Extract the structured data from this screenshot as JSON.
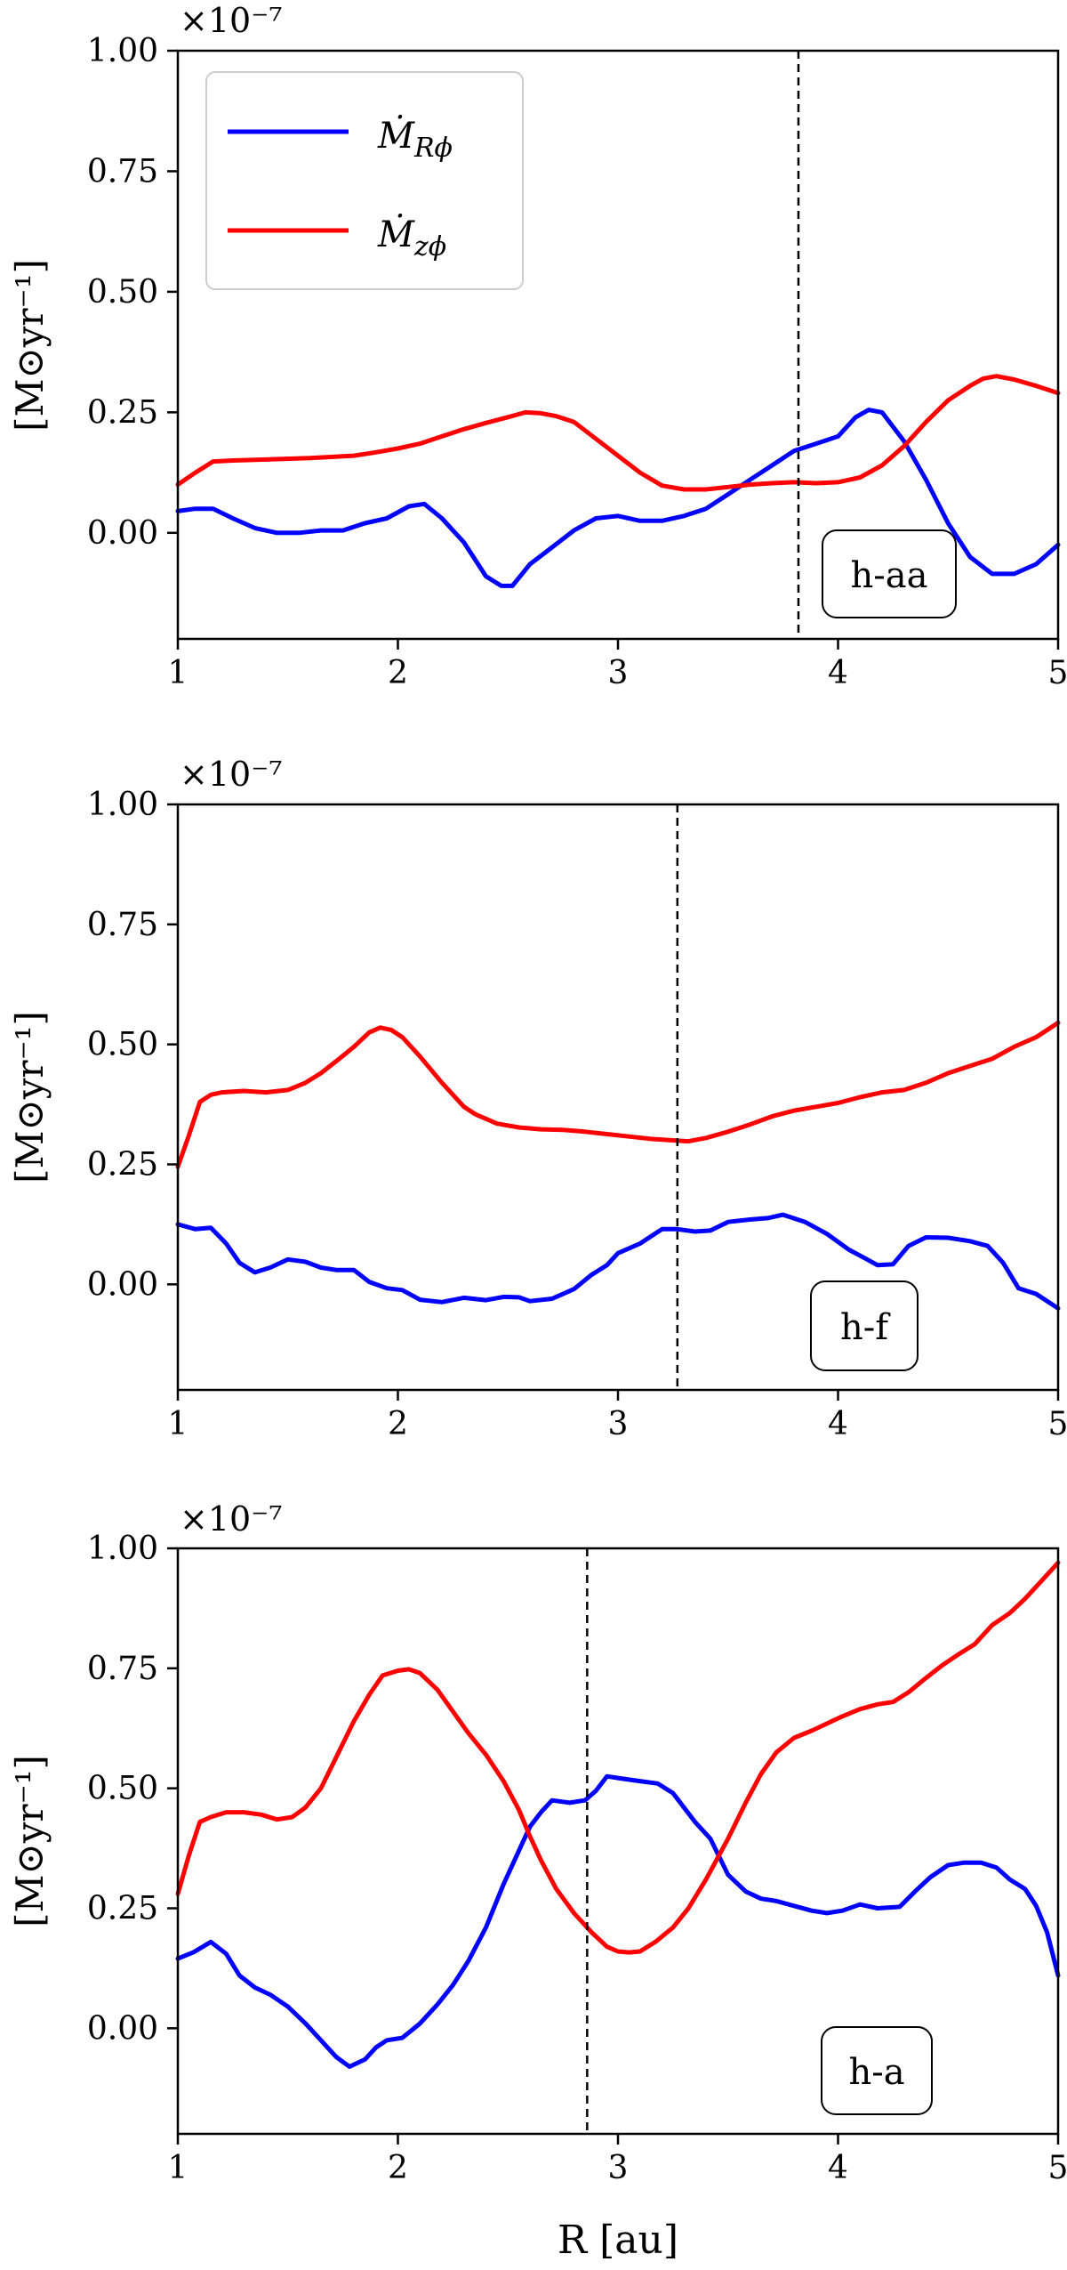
{
  "chart_data": [
    {
      "type": "line",
      "panel_tag": "h-aa",
      "multiplier_label": "×10⁻⁷",
      "ylabel": "[M⊙yr⁻¹]",
      "xlabel": "",
      "xlim": [
        1,
        5
      ],
      "ylim": [
        -0.22,
        1.0
      ],
      "xticks": [
        1,
        2,
        3,
        4,
        5
      ],
      "yticks": [
        "0.00",
        "0.25",
        "0.50",
        "0.75",
        "1.00"
      ],
      "vline_x": 3.82,
      "legend": {
        "location": "upper-left",
        "entries": [
          "Ṁ",
          "Ṁ"
        ],
        "subscripts": [
          "Rϕ",
          "zϕ"
        ]
      },
      "series": [
        {
          "name": "Ṁ_Rϕ",
          "color": "#0000ff",
          "x": [
            1.0,
            1.08,
            1.16,
            1.25,
            1.35,
            1.45,
            1.55,
            1.65,
            1.75,
            1.85,
            1.95,
            2.05,
            2.12,
            2.2,
            2.3,
            2.4,
            2.47,
            2.52,
            2.6,
            2.7,
            2.8,
            2.9,
            3.0,
            3.1,
            3.2,
            3.3,
            3.4,
            3.5,
            3.6,
            3.7,
            3.8,
            3.9,
            4.0,
            4.08,
            4.14,
            4.2,
            4.3,
            4.4,
            4.5,
            4.6,
            4.7,
            4.8,
            4.9,
            5.0
          ],
          "y": [
            0.045,
            0.05,
            0.05,
            0.03,
            0.01,
            0.0,
            0.0,
            0.005,
            0.005,
            0.02,
            0.03,
            0.055,
            0.06,
            0.03,
            -0.02,
            -0.09,
            -0.11,
            -0.11,
            -0.065,
            -0.03,
            0.005,
            0.03,
            0.035,
            0.025,
            0.025,
            0.035,
            0.05,
            0.08,
            0.11,
            0.14,
            0.17,
            0.185,
            0.2,
            0.24,
            0.255,
            0.25,
            0.19,
            0.11,
            0.02,
            -0.05,
            -0.085,
            -0.085,
            -0.065,
            -0.025
          ]
        },
        {
          "name": "Ṁ_zϕ",
          "color": "#ff0000",
          "x": [
            1.0,
            1.08,
            1.16,
            1.25,
            1.4,
            1.6,
            1.8,
            1.9,
            2.0,
            2.1,
            2.2,
            2.3,
            2.4,
            2.5,
            2.58,
            2.65,
            2.72,
            2.8,
            2.9,
            3.0,
            3.1,
            3.2,
            3.3,
            3.4,
            3.5,
            3.6,
            3.7,
            3.8,
            3.9,
            4.0,
            4.1,
            4.2,
            4.3,
            4.4,
            4.5,
            4.6,
            4.66,
            4.72,
            4.8,
            4.9,
            5.0
          ],
          "y": [
            0.1,
            0.125,
            0.148,
            0.15,
            0.152,
            0.155,
            0.16,
            0.167,
            0.175,
            0.185,
            0.2,
            0.215,
            0.228,
            0.24,
            0.25,
            0.248,
            0.242,
            0.23,
            0.195,
            0.16,
            0.125,
            0.098,
            0.09,
            0.09,
            0.095,
            0.1,
            0.103,
            0.105,
            0.103,
            0.105,
            0.115,
            0.14,
            0.18,
            0.23,
            0.275,
            0.305,
            0.32,
            0.325,
            0.318,
            0.305,
            0.29
          ]
        }
      ]
    },
    {
      "type": "line",
      "panel_tag": "h-f",
      "multiplier_label": "×10⁻⁷",
      "ylabel": "[M⊙yr⁻¹]",
      "xlabel": "",
      "xlim": [
        1,
        5
      ],
      "ylim": [
        -0.22,
        1.0
      ],
      "xticks": [
        1,
        2,
        3,
        4,
        5
      ],
      "yticks": [
        "0.00",
        "0.25",
        "0.50",
        "0.75",
        "1.00"
      ],
      "vline_x": 3.27,
      "series": [
        {
          "name": "Ṁ_Rϕ",
          "color": "#0000ff",
          "x": [
            1.0,
            1.08,
            1.15,
            1.22,
            1.28,
            1.35,
            1.42,
            1.5,
            1.58,
            1.65,
            1.72,
            1.8,
            1.87,
            1.95,
            2.02,
            2.1,
            2.2,
            2.3,
            2.4,
            2.48,
            2.55,
            2.6,
            2.7,
            2.8,
            2.88,
            2.95,
            3.0,
            3.1,
            3.2,
            3.27,
            3.35,
            3.42,
            3.5,
            3.6,
            3.68,
            3.75,
            3.85,
            3.95,
            4.05,
            4.12,
            4.18,
            4.25,
            4.32,
            4.4,
            4.5,
            4.6,
            4.68,
            4.75,
            4.82,
            4.9,
            5.0
          ],
          "y": [
            0.125,
            0.115,
            0.118,
            0.085,
            0.045,
            0.025,
            0.035,
            0.052,
            0.047,
            0.035,
            0.03,
            0.03,
            0.005,
            -0.008,
            -0.012,
            -0.032,
            -0.037,
            -0.028,
            -0.033,
            -0.026,
            -0.027,
            -0.035,
            -0.03,
            -0.01,
            0.02,
            0.04,
            0.065,
            0.085,
            0.115,
            0.115,
            0.11,
            0.112,
            0.13,
            0.135,
            0.138,
            0.145,
            0.13,
            0.105,
            0.072,
            0.055,
            0.04,
            0.042,
            0.08,
            0.098,
            0.097,
            0.09,
            0.08,
            0.045,
            -0.008,
            -0.02,
            -0.05
          ]
        },
        {
          "name": "Ṁ_zϕ",
          "color": "#ff0000",
          "x": [
            1.0,
            1.05,
            1.1,
            1.15,
            1.2,
            1.3,
            1.4,
            1.5,
            1.58,
            1.65,
            1.72,
            1.8,
            1.87,
            1.92,
            1.97,
            2.02,
            2.1,
            2.2,
            2.3,
            2.35,
            2.45,
            2.55,
            2.65,
            2.75,
            2.85,
            2.95,
            3.05,
            3.15,
            3.25,
            3.32,
            3.4,
            3.5,
            3.6,
            3.7,
            3.8,
            3.9,
            4.0,
            4.1,
            4.2,
            4.3,
            4.4,
            4.5,
            4.6,
            4.7,
            4.8,
            4.9,
            5.0
          ],
          "y": [
            0.245,
            0.31,
            0.38,
            0.395,
            0.4,
            0.403,
            0.4,
            0.405,
            0.42,
            0.44,
            0.465,
            0.495,
            0.525,
            0.535,
            0.53,
            0.515,
            0.475,
            0.42,
            0.37,
            0.355,
            0.335,
            0.327,
            0.323,
            0.322,
            0.318,
            0.313,
            0.308,
            0.303,
            0.3,
            0.298,
            0.305,
            0.318,
            0.333,
            0.35,
            0.362,
            0.37,
            0.378,
            0.39,
            0.4,
            0.405,
            0.42,
            0.44,
            0.455,
            0.47,
            0.495,
            0.515,
            0.545
          ]
        }
      ]
    },
    {
      "type": "line",
      "panel_tag": "h-a",
      "multiplier_label": "×10⁻⁷",
      "ylabel": "[M⊙yr⁻¹]",
      "xlabel": "R [au]",
      "xlim": [
        1,
        5
      ],
      "ylim": [
        -0.22,
        1.0
      ],
      "xticks": [
        1,
        2,
        3,
        4,
        5
      ],
      "yticks": [
        "0.00",
        "0.25",
        "0.50",
        "0.75",
        "1.00"
      ],
      "vline_x": 2.86,
      "series": [
        {
          "name": "Ṁ_Rϕ",
          "color": "#0000ff",
          "x": [
            1.0,
            1.07,
            1.15,
            1.22,
            1.28,
            1.35,
            1.42,
            1.5,
            1.58,
            1.65,
            1.72,
            1.78,
            1.85,
            1.9,
            1.95,
            2.02,
            2.1,
            2.18,
            2.25,
            2.32,
            2.4,
            2.48,
            2.55,
            2.6,
            2.65,
            2.7,
            2.78,
            2.85,
            2.9,
            2.95,
            3.02,
            3.1,
            3.18,
            3.25,
            3.35,
            3.42,
            3.5,
            3.58,
            3.65,
            3.72,
            3.8,
            3.88,
            3.95,
            4.02,
            4.1,
            4.18,
            4.28,
            4.35,
            4.42,
            4.5,
            4.57,
            4.65,
            4.72,
            4.78,
            4.85,
            4.9,
            4.95,
            5.0
          ],
          "y": [
            0.145,
            0.158,
            0.18,
            0.155,
            0.11,
            0.085,
            0.07,
            0.045,
            0.01,
            -0.025,
            -0.06,
            -0.08,
            -0.065,
            -0.04,
            -0.025,
            -0.02,
            0.01,
            0.05,
            0.09,
            0.14,
            0.21,
            0.3,
            0.37,
            0.42,
            0.45,
            0.475,
            0.47,
            0.475,
            0.495,
            0.525,
            0.52,
            0.515,
            0.51,
            0.49,
            0.43,
            0.395,
            0.32,
            0.285,
            0.27,
            0.265,
            0.255,
            0.245,
            0.24,
            0.245,
            0.258,
            0.25,
            0.253,
            0.285,
            0.315,
            0.34,
            0.345,
            0.345,
            0.335,
            0.31,
            0.29,
            0.255,
            0.2,
            0.11
          ]
        },
        {
          "name": "Ṁ_zϕ",
          "color": "#ff0000",
          "x": [
            1.0,
            1.05,
            1.1,
            1.15,
            1.22,
            1.3,
            1.38,
            1.45,
            1.52,
            1.58,
            1.65,
            1.72,
            1.8,
            1.87,
            1.93,
            2.0,
            2.05,
            2.1,
            2.18,
            2.25,
            2.32,
            2.4,
            2.48,
            2.55,
            2.6,
            2.65,
            2.72,
            2.8,
            2.88,
            2.95,
            3.0,
            3.05,
            3.1,
            3.17,
            3.25,
            3.32,
            3.4,
            3.5,
            3.58,
            3.65,
            3.72,
            3.8,
            3.88,
            3.95,
            4.02,
            4.1,
            4.18,
            4.25,
            4.32,
            4.4,
            4.47,
            4.55,
            4.62,
            4.7,
            4.78,
            4.85,
            4.92,
            5.0
          ],
          "y": [
            0.28,
            0.36,
            0.43,
            0.44,
            0.45,
            0.45,
            0.445,
            0.435,
            0.44,
            0.46,
            0.5,
            0.565,
            0.64,
            0.695,
            0.735,
            0.745,
            0.748,
            0.74,
            0.705,
            0.66,
            0.615,
            0.57,
            0.515,
            0.455,
            0.4,
            0.35,
            0.29,
            0.24,
            0.2,
            0.17,
            0.16,
            0.158,
            0.16,
            0.18,
            0.21,
            0.25,
            0.31,
            0.395,
            0.47,
            0.53,
            0.575,
            0.605,
            0.62,
            0.635,
            0.65,
            0.665,
            0.675,
            0.68,
            0.7,
            0.73,
            0.755,
            0.78,
            0.8,
            0.84,
            0.865,
            0.895,
            0.93,
            0.97
          ]
        }
      ]
    }
  ]
}
